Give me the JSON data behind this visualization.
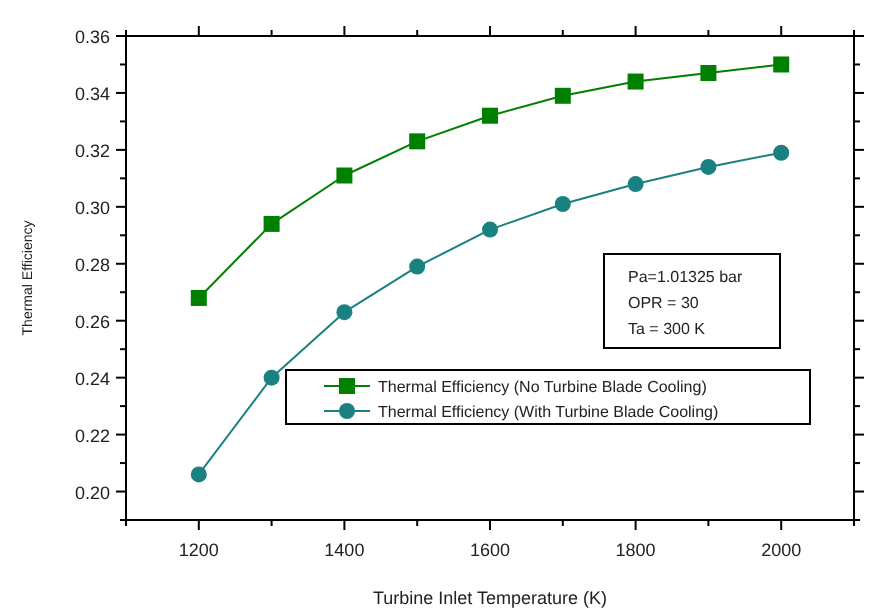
{
  "chart_data": {
    "type": "line",
    "xlabel": "Turbine Inlet Temperature (K)",
    "ylabel": "Thermal Efficiency",
    "x": [
      1200,
      1300,
      1400,
      1500,
      1600,
      1700,
      1800,
      1900,
      2000
    ],
    "series": [
      {
        "name": "Thermal Efficiency (No Turbine Blade Cooling)",
        "color": "#007f00",
        "marker": "square",
        "values": [
          0.268,
          0.294,
          0.311,
          0.323,
          0.332,
          0.339,
          0.344,
          0.347,
          0.35
        ]
      },
      {
        "name": "Thermal Efficiency (With Turbine Blade Cooling)",
        "color": "#1a8080",
        "marker": "circle",
        "values": [
          0.206,
          0.24,
          0.263,
          0.279,
          0.292,
          0.301,
          0.308,
          0.314,
          0.319
        ]
      }
    ],
    "xlim": [
      1100,
      2100
    ],
    "xticks": [
      {
        "value": 1100,
        "label": null
      },
      1200,
      {
        "value": 1300,
        "label": null
      },
      1400,
      {
        "value": 1500,
        "label": null
      },
      1600,
      {
        "value": 1700,
        "label": null
      },
      1800,
      {
        "value": 1900,
        "label": null
      },
      2000,
      {
        "value": 2100,
        "label": null
      }
    ],
    "ylim": [
      0.19,
      0.36
    ],
    "yticks": [
      {
        "value": 0.19,
        "label": null
      },
      {
        "value": 0.2,
        "label": "0.20"
      },
      {
        "value": 0.21,
        "label": null
      },
      {
        "value": 0.22,
        "label": "0.22"
      },
      {
        "value": 0.23,
        "label": null
      },
      {
        "value": 0.24,
        "label": "0.24"
      },
      {
        "value": 0.25,
        "label": null
      },
      {
        "value": 0.26,
        "label": "0.26"
      },
      {
        "value": 0.27,
        "label": null
      },
      {
        "value": 0.28,
        "label": "0.28"
      },
      {
        "value": 0.29,
        "label": null
      },
      {
        "value": 0.3,
        "label": "0.30"
      },
      {
        "value": 0.31,
        "label": null
      },
      {
        "value": 0.32,
        "label": "0.32"
      },
      {
        "value": 0.33,
        "label": null
      },
      {
        "value": 0.34,
        "label": "0.34"
      },
      {
        "value": 0.35,
        "label": null
      },
      {
        "value": 0.36,
        "label": "0.36"
      }
    ],
    "annotations": [
      "Pa=1.01325 bar",
      "OPR = 30",
      "Ta = 300 K"
    ],
    "legend": "bottom right",
    "grid": false,
    "line_style": "solid"
  }
}
